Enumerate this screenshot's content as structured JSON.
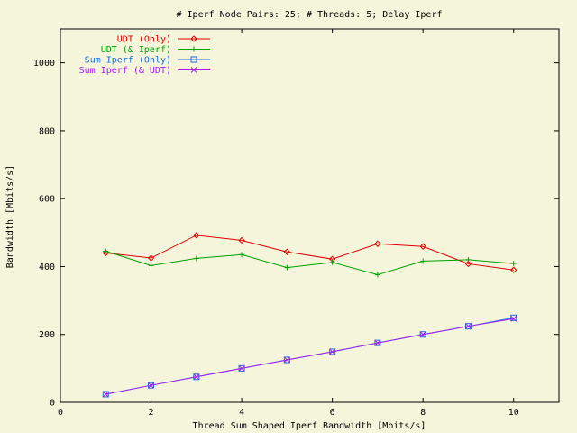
{
  "chart_data": {
    "type": "line",
    "title": "# Iperf Node Pairs: 25; # Threads: 5; Delay Iperf",
    "xlabel": "Thread Sum Shaped Iperf Bandwidth [Mbits/s]",
    "ylabel": "Bandwidth [Mbits/s]",
    "xlim": [
      0,
      11
    ],
    "ylim": [
      0,
      1100
    ],
    "xticks": [
      0,
      2,
      4,
      6,
      8,
      10
    ],
    "yticks": [
      0,
      200,
      400,
      600,
      800,
      1000
    ],
    "grid": false,
    "legend_position": "top-left",
    "x": [
      1,
      2,
      3,
      4,
      5,
      6,
      7,
      8,
      9,
      10
    ],
    "series": [
      {
        "name": "UDT (Only)",
        "color": "#e00000",
        "marker": "diamond",
        "values": [
          440,
          425,
          492,
          477,
          443,
          422,
          467,
          459,
          408,
          390
        ]
      },
      {
        "name": "UDT (& Iperf)",
        "color": "#00a000",
        "marker": "plus",
        "values": [
          445,
          403,
          424,
          435,
          397,
          412,
          376,
          416,
          420,
          409
        ]
      },
      {
        "name": "Sum Iperf (Only)",
        "color": "#1a6fd6",
        "marker": "square",
        "values": [
          24,
          50,
          75,
          100,
          125,
          149,
          175,
          200,
          224,
          249
        ]
      },
      {
        "name": "Sum Iperf (& UDT)",
        "color": "#a020f0",
        "marker": "x",
        "values": [
          24,
          50,
          75,
          100,
          125,
          149,
          175,
          200,
          224,
          246
        ]
      }
    ]
  }
}
